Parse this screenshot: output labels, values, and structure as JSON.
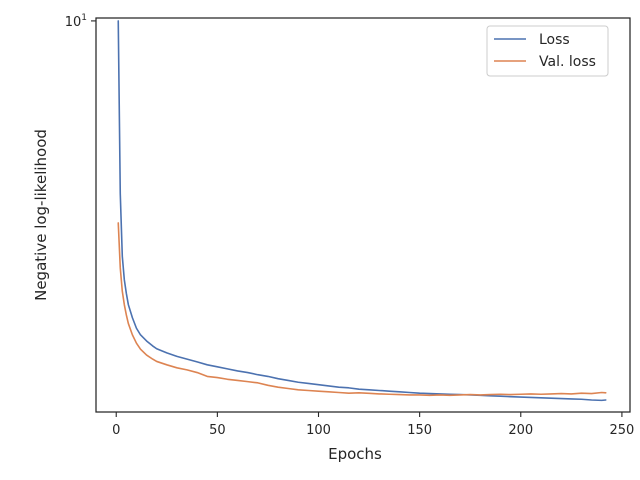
{
  "chart_data": {
    "type": "line",
    "title": "",
    "xlabel": "Epochs",
    "ylabel": "Negative log-likelihood",
    "yscale": "log",
    "xlim": [
      -10,
      254
    ],
    "ylim": [
      0.0985,
      10.35
    ],
    "grid": false,
    "legend_position": "top-right",
    "x_ticks": [
      {
        "value": 0,
        "label": "0"
      },
      {
        "value": 50,
        "label": "50"
      },
      {
        "value": 100,
        "label": "100"
      },
      {
        "value": 150,
        "label": "150"
      },
      {
        "value": 200,
        "label": "200"
      },
      {
        "value": 250,
        "label": "250"
      }
    ],
    "y_ticks": [
      {
        "value": 10,
        "label": "10",
        "exponent": "1"
      }
    ],
    "series": [
      {
        "name": "Loss",
        "color": "#4c72b0",
        "points": [
          [
            1,
            10.0
          ],
          [
            2,
            1.3
          ],
          [
            3,
            0.62
          ],
          [
            4,
            0.47
          ],
          [
            5,
            0.4
          ],
          [
            6,
            0.35
          ],
          [
            8,
            0.3
          ],
          [
            10,
            0.265
          ],
          [
            12,
            0.245
          ],
          [
            15,
            0.228
          ],
          [
            18,
            0.215
          ],
          [
            20,
            0.208
          ],
          [
            25,
            0.198
          ],
          [
            30,
            0.19
          ],
          [
            35,
            0.184
          ],
          [
            40,
            0.178
          ],
          [
            45,
            0.172
          ],
          [
            50,
            0.168
          ],
          [
            55,
            0.164
          ],
          [
            60,
            0.16
          ],
          [
            65,
            0.157
          ],
          [
            70,
            0.153
          ],
          [
            75,
            0.15
          ],
          [
            80,
            0.146
          ],
          [
            85,
            0.143
          ],
          [
            90,
            0.14
          ],
          [
            95,
            0.138
          ],
          [
            100,
            0.136
          ],
          [
            105,
            0.134
          ],
          [
            110,
            0.132
          ],
          [
            115,
            0.131
          ],
          [
            120,
            0.129
          ],
          [
            125,
            0.128
          ],
          [
            130,
            0.127
          ],
          [
            135,
            0.126
          ],
          [
            140,
            0.125
          ],
          [
            145,
            0.124
          ],
          [
            150,
            0.123
          ],
          [
            155,
            0.1225
          ],
          [
            160,
            0.122
          ],
          [
            165,
            0.1215
          ],
          [
            170,
            0.121
          ],
          [
            175,
            0.1205
          ],
          [
            180,
            0.12
          ],
          [
            185,
            0.1193
          ],
          [
            190,
            0.1187
          ],
          [
            195,
            0.118
          ],
          [
            200,
            0.1175
          ],
          [
            205,
            0.117
          ],
          [
            210,
            0.1165
          ],
          [
            215,
            0.116
          ],
          [
            220,
            0.1155
          ],
          [
            225,
            0.115
          ],
          [
            230,
            0.1145
          ],
          [
            235,
            0.1135
          ],
          [
            240,
            0.113
          ],
          [
            242,
            0.1135
          ]
        ]
      },
      {
        "name": "Val. loss",
        "color": "#dd8452",
        "points": [
          [
            1,
            0.92
          ],
          [
            2,
            0.54
          ],
          [
            3,
            0.41
          ],
          [
            4,
            0.35
          ],
          [
            5,
            0.31
          ],
          [
            6,
            0.28
          ],
          [
            8,
            0.245
          ],
          [
            10,
            0.222
          ],
          [
            12,
            0.207
          ],
          [
            15,
            0.193
          ],
          [
            18,
            0.184
          ],
          [
            20,
            0.179
          ],
          [
            25,
            0.172
          ],
          [
            30,
            0.166
          ],
          [
            35,
            0.162
          ],
          [
            40,
            0.157
          ],
          [
            45,
            0.15
          ],
          [
            50,
            0.148
          ],
          [
            55,
            0.145
          ],
          [
            60,
            0.143
          ],
          [
            65,
            0.141
          ],
          [
            70,
            0.139
          ],
          [
            75,
            0.135
          ],
          [
            80,
            0.132
          ],
          [
            85,
            0.13
          ],
          [
            90,
            0.128
          ],
          [
            95,
            0.127
          ],
          [
            100,
            0.126
          ],
          [
            105,
            0.125
          ],
          [
            110,
            0.124
          ],
          [
            115,
            0.123
          ],
          [
            120,
            0.1235
          ],
          [
            125,
            0.1228
          ],
          [
            130,
            0.122
          ],
          [
            135,
            0.1215
          ],
          [
            140,
            0.121
          ],
          [
            145,
            0.1205
          ],
          [
            150,
            0.1205
          ],
          [
            155,
            0.12
          ],
          [
            160,
            0.1205
          ],
          [
            165,
            0.12
          ],
          [
            170,
            0.1205
          ],
          [
            175,
            0.121
          ],
          [
            180,
            0.1205
          ],
          [
            185,
            0.121
          ],
          [
            190,
            0.1215
          ],
          [
            195,
            0.121
          ],
          [
            200,
            0.1215
          ],
          [
            205,
            0.122
          ],
          [
            210,
            0.1215
          ],
          [
            215,
            0.122
          ],
          [
            220,
            0.1225
          ],
          [
            225,
            0.122
          ],
          [
            230,
            0.123
          ],
          [
            235,
            0.1225
          ],
          [
            240,
            0.124
          ],
          [
            242,
            0.1235
          ]
        ]
      }
    ]
  }
}
